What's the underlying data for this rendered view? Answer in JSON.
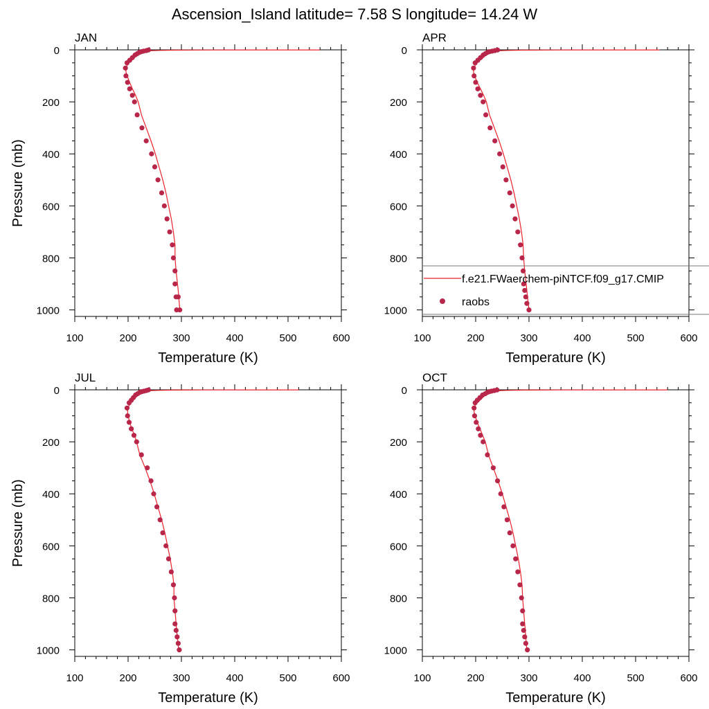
{
  "figure": {
    "title": "Ascension_Island  latitude= 7.58 S longitude= 14.24 W"
  },
  "legend": {
    "model_label": "f.e21.FWaerchem-piNTCF.f09_g17.CMIP",
    "obs_label": "raobs",
    "placement": "right side of APR panel"
  },
  "colors": {
    "model_line": "#e8232a",
    "obs_marker": "#b8264a",
    "axis": "#000000"
  },
  "chart_data": [
    {
      "type": "line",
      "panel_label": "JAN",
      "xlabel": "Temperature (K)",
      "ylabel": "Pressure (mb)",
      "xlim": [
        100,
        600
      ],
      "ylim": [
        1025,
        0
      ],
      "x_ticks": [
        "100",
        "200",
        "300",
        "400",
        "500",
        "600"
      ],
      "y_ticks": [
        "0",
        "200",
        "400",
        "600",
        "800",
        "1000"
      ],
      "series": [
        {
          "name": "f.e21.FWaerchem-piNTCF.f09_g17.CMIP",
          "style": "line",
          "x": [
            560,
            460,
            360,
            290,
            258,
            245,
            238,
            232,
            227,
            222,
            217,
            212,
            207,
            202,
            198,
            196,
            196,
            198,
            203,
            208,
            214,
            219,
            225,
            234,
            243,
            251,
            258,
            265,
            271,
            276,
            281,
            285,
            288,
            288,
            290,
            294,
            297
          ],
          "y": [
            0.2,
            0.35,
            0.6,
            1,
            2,
            3,
            5,
            7,
            10,
            15,
            20,
            30,
            40,
            50,
            60,
            70,
            85,
            100,
            125,
            150,
            175,
            200,
            250,
            300,
            350,
            400,
            450,
            500,
            550,
            600,
            650,
            700,
            750,
            800,
            850,
            925,
            1000
          ]
        },
        {
          "name": "raobs",
          "style": "markers",
          "x": [
            238,
            234,
            229,
            225,
            221,
            217,
            213,
            208,
            203,
            198,
            195,
            196,
            199,
            203,
            208,
            212,
            217,
            226,
            234,
            244,
            250,
            256,
            263,
            268,
            273,
            278,
            283,
            285,
            288,
            288,
            290,
            291,
            294,
            297
          ],
          "y": [
            0.5,
            3,
            5,
            7,
            10,
            15,
            20,
            30,
            40,
            50,
            70,
            100,
            125,
            150,
            175,
            200,
            250,
            300,
            350,
            400,
            450,
            500,
            550,
            600,
            650,
            700,
            750,
            800,
            850,
            900,
            950,
            1000,
            950,
            1000
          ]
        }
      ]
    },
    {
      "type": "line",
      "panel_label": "APR",
      "xlabel": "Temperature (K)",
      "ylabel": "",
      "xlim": [
        100,
        600
      ],
      "ylim": [
        1025,
        0
      ],
      "x_ticks": [
        "100",
        "200",
        "300",
        "400",
        "500",
        "600"
      ],
      "y_ticks": [
        "0",
        "200",
        "400",
        "600",
        "800",
        "1000"
      ],
      "series": [
        {
          "name": "f.e21.FWaerchem-piNTCF.f09_g17.CMIP",
          "style": "line",
          "x": [
            545,
            450,
            355,
            290,
            260,
            247,
            241,
            235,
            230,
            224,
            219,
            214,
            208,
            203,
            199,
            197,
            196,
            198,
            203,
            209,
            215,
            220,
            226,
            235,
            244,
            252,
            259,
            266,
            272,
            277,
            282,
            286,
            289,
            290,
            292,
            296,
            300
          ],
          "y": [
            0.2,
            0.35,
            0.6,
            1,
            2,
            3,
            5,
            7,
            10,
            15,
            20,
            30,
            40,
            50,
            60,
            70,
            85,
            100,
            125,
            150,
            175,
            200,
            250,
            300,
            350,
            400,
            450,
            500,
            550,
            600,
            650,
            700,
            750,
            800,
            850,
            925,
            1000
          ]
        },
        {
          "name": "raobs",
          "style": "markers",
          "x": [
            241,
            236,
            231,
            226,
            222,
            218,
            214,
            209,
            204,
            199,
            196,
            197,
            200,
            204,
            209,
            214,
            219,
            227,
            236,
            245,
            251,
            257,
            264,
            269,
            274,
            279,
            284,
            287,
            289,
            290,
            292,
            294,
            296,
            300
          ],
          "y": [
            0.5,
            3,
            5,
            7,
            10,
            15,
            20,
            30,
            40,
            50,
            70,
            100,
            125,
            150,
            175,
            200,
            250,
            300,
            350,
            400,
            450,
            500,
            550,
            600,
            650,
            700,
            750,
            800,
            850,
            900,
            925,
            950,
            975,
            1000
          ]
        }
      ]
    },
    {
      "type": "line",
      "panel_label": "JUL",
      "xlabel": "Temperature (K)",
      "ylabel": "Pressure (mb)",
      "xlim": [
        100,
        600
      ],
      "ylim": [
        1025,
        0
      ],
      "x_ticks": [
        "100",
        "200",
        "300",
        "400",
        "500",
        "600"
      ],
      "y_ticks": [
        "0",
        "200",
        "400",
        "600",
        "800",
        "1000"
      ],
      "series": [
        {
          "name": "f.e21.FWaerchem-piNTCF.f09_g17.CMIP",
          "style": "line",
          "x": [
            520,
            430,
            345,
            285,
            255,
            243,
            237,
            232,
            228,
            223,
            218,
            214,
            209,
            205,
            202,
            200,
            199,
            200,
            203,
            207,
            212,
            216,
            222,
            232,
            241,
            249,
            256,
            263,
            269,
            274,
            279,
            283,
            286,
            286,
            288,
            291,
            295
          ],
          "y": [
            0.2,
            0.35,
            0.6,
            1,
            2,
            3,
            5,
            7,
            10,
            15,
            20,
            30,
            40,
            50,
            60,
            70,
            85,
            100,
            125,
            150,
            175,
            200,
            250,
            300,
            350,
            400,
            450,
            500,
            550,
            600,
            650,
            700,
            750,
            800,
            850,
            925,
            1000
          ]
        },
        {
          "name": "raobs",
          "style": "markers",
          "x": [
            238,
            234,
            230,
            226,
            222,
            218,
            214,
            210,
            206,
            202,
            198,
            199,
            202,
            206,
            211,
            216,
            225,
            236,
            243,
            248,
            254,
            260,
            265,
            271,
            276,
            281,
            285,
            287,
            288,
            288,
            290,
            292,
            294,
            296
          ],
          "y": [
            0.5,
            3,
            5,
            7,
            10,
            15,
            20,
            30,
            40,
            50,
            70,
            100,
            125,
            150,
            175,
            200,
            250,
            300,
            350,
            400,
            450,
            500,
            550,
            600,
            650,
            700,
            750,
            800,
            850,
            900,
            925,
            950,
            975,
            1000
          ]
        }
      ]
    },
    {
      "type": "line",
      "panel_label": "OCT",
      "xlabel": "Temperature (K)",
      "ylabel": "",
      "xlim": [
        100,
        600
      ],
      "ylim": [
        1025,
        0
      ],
      "x_ticks": [
        "100",
        "200",
        "300",
        "400",
        "500",
        "600"
      ],
      "y_ticks": [
        "0",
        "200",
        "400",
        "600",
        "800",
        "1000"
      ],
      "series": [
        {
          "name": "f.e21.FWaerchem-piNTCF.f09_g17.CMIP",
          "style": "line",
          "x": [
            560,
            455,
            355,
            290,
            258,
            246,
            240,
            234,
            229,
            223,
            218,
            213,
            208,
            203,
            199,
            197,
            197,
            199,
            203,
            208,
            213,
            218,
            224,
            233,
            242,
            250,
            257,
            264,
            270,
            275,
            280,
            284,
            287,
            288,
            290,
            293,
            296
          ],
          "y": [
            0.2,
            0.35,
            0.6,
            1,
            2,
            3,
            5,
            7,
            10,
            15,
            20,
            30,
            40,
            50,
            60,
            70,
            85,
            100,
            125,
            150,
            175,
            200,
            250,
            300,
            350,
            400,
            450,
            500,
            550,
            600,
            650,
            700,
            750,
            800,
            850,
            925,
            1000
          ]
        },
        {
          "name": "raobs",
          "style": "markers",
          "x": [
            240,
            235,
            230,
            226,
            222,
            218,
            213,
            208,
            203,
            199,
            197,
            198,
            201,
            205,
            209,
            214,
            222,
            233,
            241,
            247,
            253,
            259,
            264,
            270,
            275,
            279,
            283,
            286,
            288,
            288,
            290,
            292,
            294,
            297
          ],
          "y": [
            0.5,
            3,
            5,
            7,
            10,
            15,
            20,
            30,
            40,
            50,
            70,
            100,
            125,
            150,
            175,
            200,
            250,
            300,
            350,
            400,
            450,
            500,
            550,
            600,
            650,
            700,
            750,
            800,
            850,
            900,
            925,
            950,
            975,
            1000
          ]
        }
      ]
    }
  ]
}
